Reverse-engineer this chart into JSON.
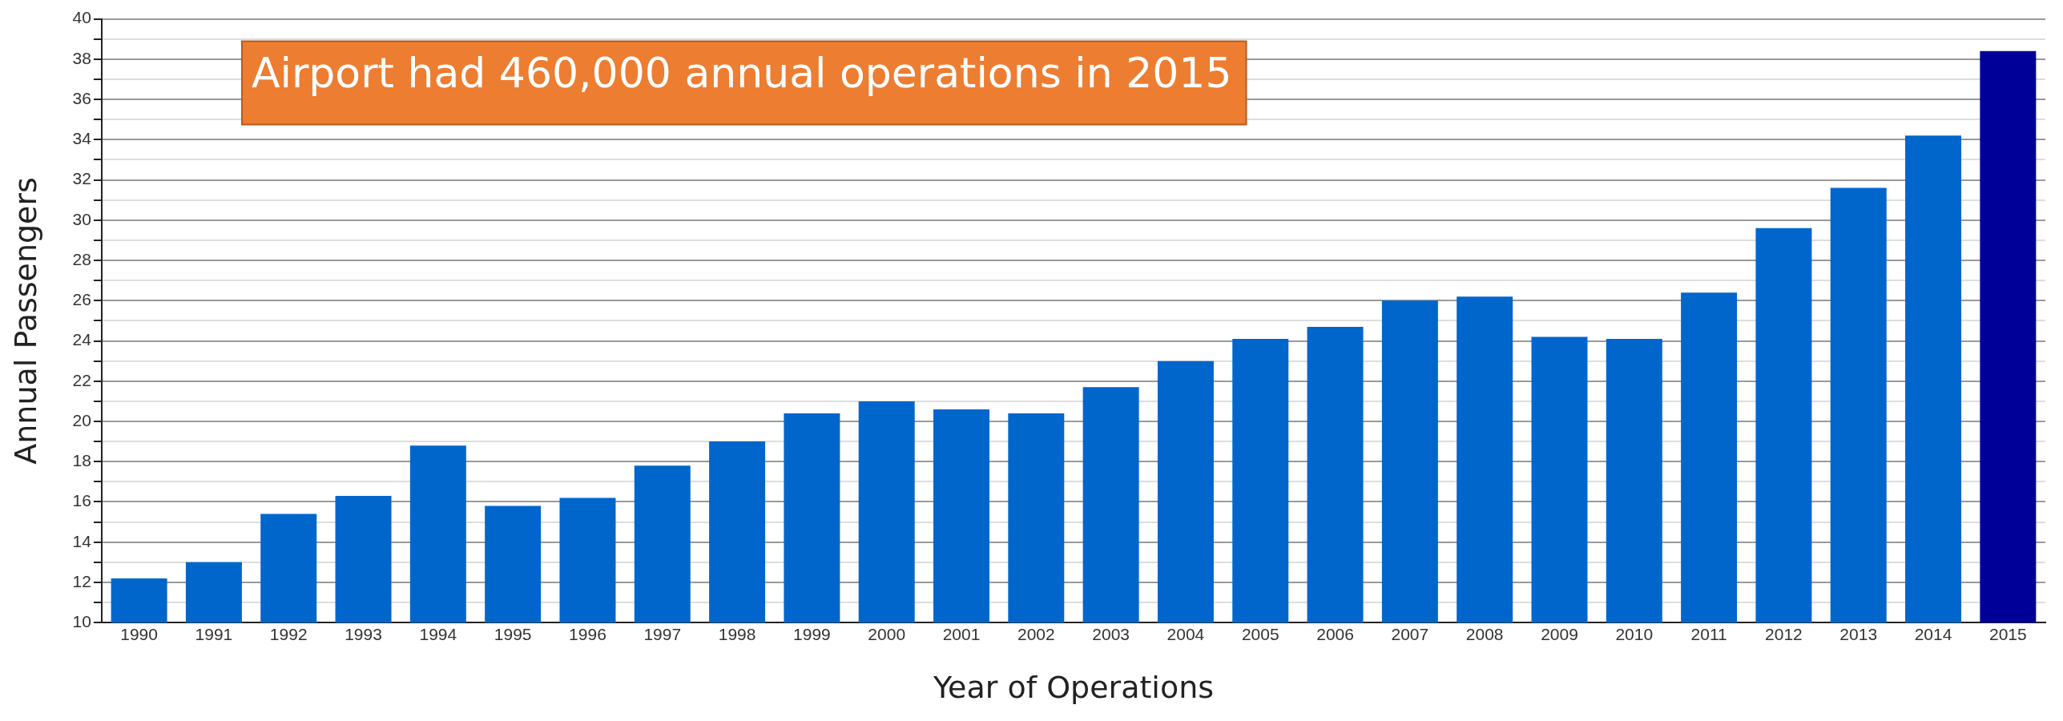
{
  "chart_data": {
    "type": "bar",
    "xlabel": "Year of Operations",
    "ylabel": "Annual Passengers",
    "categories": [
      "1990",
      "1991",
      "1992",
      "1993",
      "1994",
      "1995",
      "1996",
      "1997",
      "1998",
      "1999",
      "2000",
      "2001",
      "2002",
      "2003",
      "2004",
      "2005",
      "2006",
      "2007",
      "2008",
      "2009",
      "2010",
      "2011",
      "2012",
      "2013",
      "2014",
      "2015"
    ],
    "values": [
      12.2,
      13.0,
      15.4,
      16.3,
      18.8,
      15.8,
      16.2,
      17.8,
      19.0,
      20.4,
      21.0,
      20.6,
      20.4,
      21.7,
      23.0,
      24.1,
      24.7,
      26.0,
      26.2,
      24.2,
      24.1,
      26.4,
      29.6,
      31.6,
      34.2,
      38.4
    ],
    "colors": [
      "#0066cc",
      "#0066cc",
      "#0066cc",
      "#0066cc",
      "#0066cc",
      "#0066cc",
      "#0066cc",
      "#0066cc",
      "#0066cc",
      "#0066cc",
      "#0066cc",
      "#0066cc",
      "#0066cc",
      "#0066cc",
      "#0066cc",
      "#0066cc",
      "#0066cc",
      "#0066cc",
      "#0066cc",
      "#0066cc",
      "#0066cc",
      "#0066cc",
      "#0066cc",
      "#0066cc",
      "#0066cc",
      "#000099"
    ],
    "ylim": [
      10,
      40
    ],
    "yticks": [
      10,
      {
        "value": 11,
        "label": null
      },
      12,
      {
        "value": 13,
        "label": null
      },
      14,
      {
        "value": 15,
        "label": null
      },
      16,
      {
        "value": 17,
        "label": null
      },
      18,
      {
        "value": 19,
        "label": null
      },
      20,
      {
        "value": 21,
        "label": null
      },
      22,
      {
        "value": 23,
        "label": null
      },
      24,
      {
        "value": 25,
        "label": null
      },
      26,
      {
        "value": 27,
        "label": null
      },
      28,
      {
        "value": 29,
        "label": null
      },
      30,
      {
        "value": 31,
        "label": null
      },
      32,
      {
        "value": 33,
        "label": null
      },
      34,
      {
        "value": 35,
        "label": null
      },
      36,
      {
        "value": 37,
        "label": null
      },
      38,
      {
        "value": 39,
        "label": null
      },
      40
    ],
    "grid": "y",
    "annotations": [
      "Airport had 460,000 annual operations in 2015"
    ]
  }
}
